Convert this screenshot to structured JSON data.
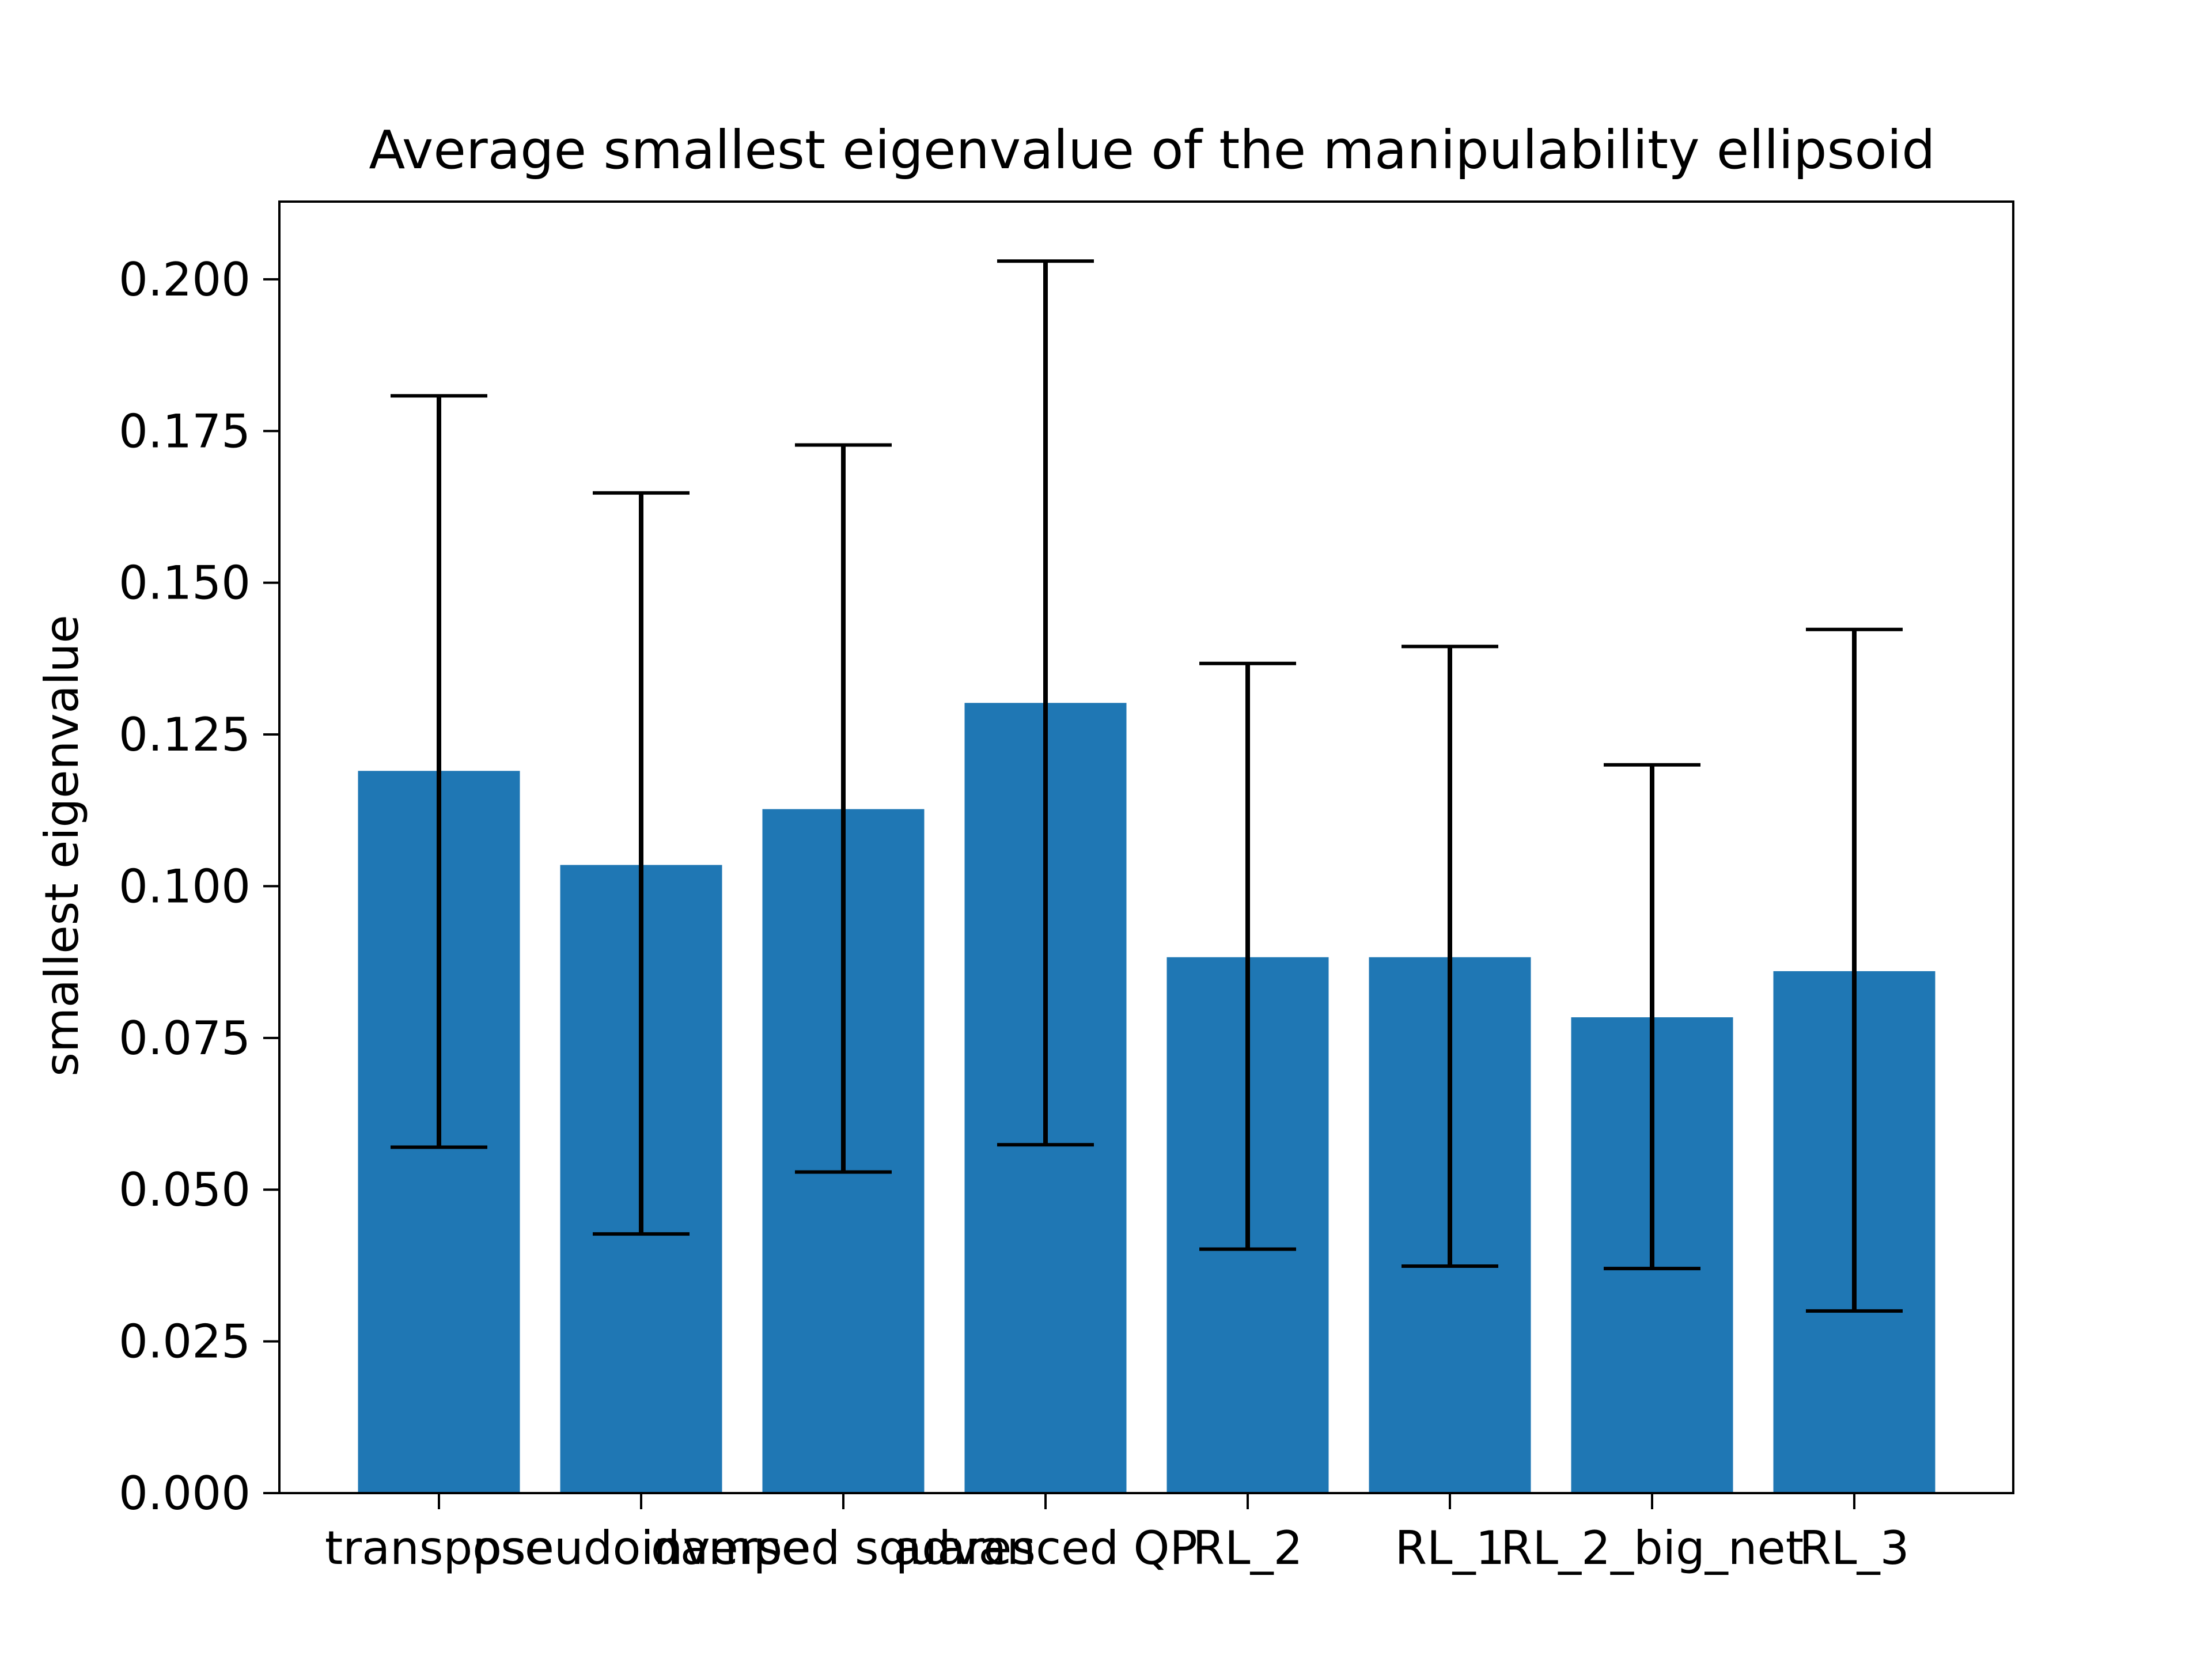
{
  "chart_data": {
    "type": "bar",
    "title": "Average smallest eigenvalue of the manipulability ellipsoid",
    "xlabel": "",
    "ylabel": "smallest eigenvalue",
    "categories": [
      "transpose",
      "pseudoinverse",
      "damped squares",
      "advanced QP",
      "RL_2",
      "RL_1",
      "RL_2_big_net",
      "RL_3"
    ],
    "values": [
      0.119,
      0.1035,
      0.1127,
      0.1302,
      0.0883,
      0.0883,
      0.0784,
      0.086
    ],
    "error_low": [
      0.057,
      0.0427,
      0.0529,
      0.0574,
      0.0402,
      0.0374,
      0.037,
      0.03
    ],
    "error_high": [
      0.1808,
      0.1648,
      0.1727,
      0.203,
      0.1367,
      0.1395,
      0.12,
      0.1423
    ],
    "yticks": [
      "0.000",
      "0.025",
      "0.050",
      "0.075",
      "0.100",
      "0.125",
      "0.150",
      "0.175",
      "0.200"
    ],
    "ylim": [
      0,
      0.2128
    ],
    "bar_color": "#1f77b4",
    "error_color": "#000000",
    "grid": false,
    "legend": "none"
  }
}
